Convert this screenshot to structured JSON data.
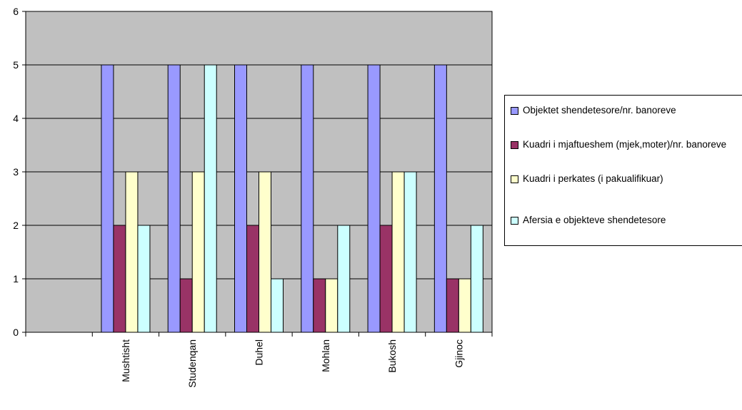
{
  "chart_data": {
    "type": "bar",
    "title": "",
    "xlabel": "",
    "ylabel": "",
    "ylim": [
      0,
      6
    ],
    "yticks": [
      0,
      1,
      2,
      3,
      4,
      5,
      6
    ],
    "grid": true,
    "legend_position": "right",
    "categories": [
      "",
      "Mushtisht",
      "Studenqan",
      "Duhel",
      "Mohlan",
      "Bukosh",
      "Gjinoc"
    ],
    "series": [
      {
        "name": "Objektet shendetesore/nr. banoreve",
        "color": "#9999ff",
        "values": [
          null,
          5,
          5,
          5,
          5,
          5,
          5
        ]
      },
      {
        "name": "Kuadri i mjaftueshem (mjek,moter)/nr. banoreve",
        "color": "#993366",
        "values": [
          null,
          2,
          1,
          2,
          1,
          2,
          1
        ]
      },
      {
        "name": "Kuadri i perkates (i pakualifikuar)",
        "color": "#ffffcc",
        "values": [
          null,
          3,
          3,
          3,
          1,
          3,
          1
        ]
      },
      {
        "name": "Afersia e objekteve shendetesore",
        "color": "#ccffff",
        "values": [
          null,
          2,
          5,
          1,
          2,
          3,
          2
        ]
      }
    ]
  },
  "colors": {
    "plot_background": "#c0c0c0",
    "gridline": "#000000"
  },
  "legend": {
    "items": [
      {
        "label": "Objektet shendetesore/nr. banoreve",
        "color": "#9999ff"
      },
      {
        "label": "Kuadri i mjaftueshem (mjek,moter)/nr. banoreve",
        "color": "#993366"
      },
      {
        "label": "Kuadri i perkates (i pakualifikuar)",
        "color": "#ffffcc"
      },
      {
        "label": "Afersia e objekteve shendetesore",
        "color": "#ccffff"
      }
    ]
  }
}
